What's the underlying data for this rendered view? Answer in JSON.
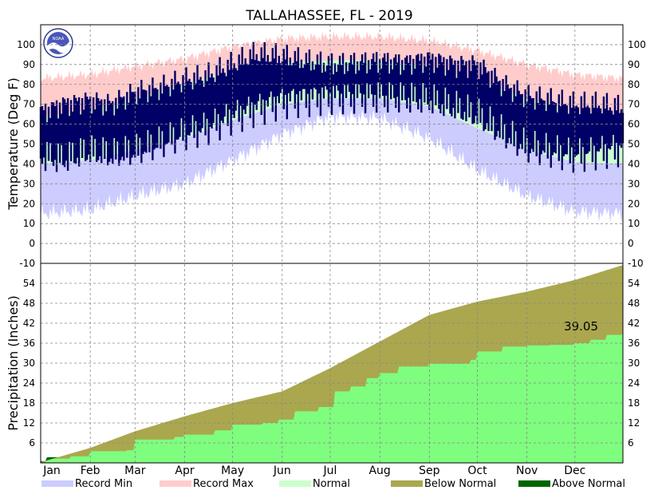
{
  "title": "TALLAHASSEE, FL - 2019",
  "logo_text": "NOAA",
  "chart_data": [
    {
      "type": "area",
      "panel": "temperature",
      "ylabel": "Temperature (Deg F)",
      "ylim": [
        -10,
        110
      ],
      "yticks": [
        -10,
        0,
        10,
        20,
        30,
        40,
        50,
        60,
        70,
        80,
        90,
        100
      ],
      "months": [
        "Jan",
        "Feb",
        "Mar",
        "Apr",
        "May",
        "Jun",
        "Jul",
        "Aug",
        "Sep",
        "Oct",
        "Nov",
        "Dec"
      ],
      "grid": true,
      "normal_high": [
        [
          1,
          64
        ],
        [
          32,
          67
        ],
        [
          60,
          73
        ],
        [
          91,
          80
        ],
        [
          121,
          87
        ],
        [
          152,
          91
        ],
        [
          182,
          92
        ],
        [
          213,
          92
        ],
        [
          244,
          89
        ],
        [
          274,
          82
        ],
        [
          305,
          73
        ],
        [
          335,
          66
        ],
        [
          365,
          64
        ]
      ],
      "normal_low": [
        [
          1,
          40
        ],
        [
          32,
          42
        ],
        [
          60,
          47
        ],
        [
          91,
          53
        ],
        [
          121,
          62
        ],
        [
          152,
          70
        ],
        [
          182,
          73
        ],
        [
          213,
          73
        ],
        [
          244,
          69
        ],
        [
          274,
          58
        ],
        [
          305,
          47
        ],
        [
          335,
          41
        ],
        [
          365,
          40
        ]
      ],
      "record_max": [
        [
          1,
          83
        ],
        [
          32,
          85
        ],
        [
          60,
          89
        ],
        [
          91,
          93
        ],
        [
          121,
          99
        ],
        [
          152,
          103
        ],
        [
          182,
          104
        ],
        [
          213,
          104
        ],
        [
          244,
          102
        ],
        [
          274,
          97
        ],
        [
          305,
          90
        ],
        [
          335,
          85
        ],
        [
          365,
          83
        ]
      ],
      "record_min": [
        [
          1,
          15
        ],
        [
          32,
          17
        ],
        [
          60,
          24
        ],
        [
          91,
          30
        ],
        [
          121,
          42
        ],
        [
          152,
          55
        ],
        [
          182,
          64
        ],
        [
          213,
          63
        ],
        [
          244,
          53
        ],
        [
          274,
          37
        ],
        [
          305,
          24
        ],
        [
          335,
          16
        ],
        [
          365,
          15
        ]
      ],
      "observed_high": [
        [
          1,
          66
        ],
        [
          15,
          70
        ],
        [
          32,
          72
        ],
        [
          45,
          70
        ],
        [
          60,
          76
        ],
        [
          75,
          78
        ],
        [
          91,
          82
        ],
        [
          105,
          84
        ],
        [
          121,
          90
        ],
        [
          135,
          95
        ],
        [
          152,
          94
        ],
        [
          165,
          92
        ],
        [
          182,
          90
        ],
        [
          200,
          91
        ],
        [
          213,
          92
        ],
        [
          230,
          91
        ],
        [
          244,
          93
        ],
        [
          260,
          90
        ],
        [
          274,
          90
        ],
        [
          290,
          80
        ],
        [
          305,
          74
        ],
        [
          320,
          72
        ],
        [
          335,
          70
        ],
        [
          350,
          70
        ],
        [
          365,
          68
        ]
      ],
      "observed_low": [
        [
          1,
          44
        ],
        [
          15,
          42
        ],
        [
          32,
          46
        ],
        [
          45,
          44
        ],
        [
          60,
          46
        ],
        [
          75,
          50
        ],
        [
          91,
          55
        ],
        [
          105,
          58
        ],
        [
          121,
          64
        ],
        [
          135,
          68
        ],
        [
          152,
          72
        ],
        [
          165,
          73
        ],
        [
          182,
          74
        ],
        [
          200,
          74
        ],
        [
          213,
          74
        ],
        [
          230,
          73
        ],
        [
          244,
          72
        ],
        [
          260,
          68
        ],
        [
          274,
          64
        ],
        [
          290,
          55
        ],
        [
          305,
          48
        ],
        [
          320,
          46
        ],
        [
          335,
          44
        ],
        [
          350,
          46
        ],
        [
          365,
          48
        ]
      ]
    },
    {
      "type": "area",
      "panel": "precipitation",
      "ylabel": "Precipitation (Inches)",
      "ylim": [
        0,
        60
      ],
      "yticks": [
        6,
        12,
        18,
        24,
        30,
        36,
        42,
        48,
        54
      ],
      "grid": true,
      "annotation": "39.05",
      "normal_cumulative": [
        [
          1,
          0.2
        ],
        [
          32,
          4.5
        ],
        [
          60,
          9.5
        ],
        [
          91,
          14.0
        ],
        [
          121,
          18.0
        ],
        [
          152,
          21.5
        ],
        [
          182,
          28.5
        ],
        [
          213,
          36.5
        ],
        [
          244,
          44.5
        ],
        [
          274,
          48.5
        ],
        [
          305,
          51.5
        ],
        [
          335,
          55.0
        ],
        [
          365,
          59.5
        ]
      ],
      "observed_cumulative": [
        [
          1,
          0.1
        ],
        [
          5,
          1.3
        ],
        [
          20,
          2.0
        ],
        [
          32,
          3.5
        ],
        [
          55,
          3.8
        ],
        [
          60,
          7.0
        ],
        [
          85,
          7.8
        ],
        [
          91,
          8.5
        ],
        [
          110,
          9.8
        ],
        [
          121,
          11.5
        ],
        [
          140,
          12.0
        ],
        [
          150,
          13.0
        ],
        [
          160,
          15.5
        ],
        [
          175,
          16.8
        ],
        [
          185,
          21.5
        ],
        [
          195,
          23.0
        ],
        [
          205,
          25.5
        ],
        [
          213,
          27.0
        ],
        [
          225,
          29.0
        ],
        [
          244,
          29.8
        ],
        [
          270,
          31.0
        ],
        [
          274,
          33.5
        ],
        [
          290,
          35.0
        ],
        [
          305,
          35.3
        ],
        [
          320,
          35.5
        ],
        [
          335,
          36.0
        ],
        [
          345,
          37.0
        ],
        [
          355,
          38.5
        ],
        [
          365,
          39.05
        ]
      ]
    }
  ],
  "legend": [
    {
      "label": "Record Min",
      "color": "#ccccff"
    },
    {
      "label": "Record Max",
      "color": "#ffcccc"
    },
    {
      "label": "Normal",
      "color": "#ccffcc"
    },
    {
      "label": "Below Normal",
      "color": "#aaa74f"
    },
    {
      "label": "Above Normal",
      "color": "#006600"
    }
  ],
  "colors": {
    "observed_temp": "#000066",
    "observed_precip": "#7ffd7f",
    "below_normal": "#aaa74f",
    "above_normal": "#006600"
  }
}
